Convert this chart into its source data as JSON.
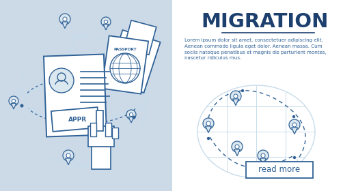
{
  "title": "MIGRATION",
  "body_text": "Lorem ipsum dolor sit amet, consectetuer adipiscing elit.\nAenean commodo ligula eget dolor. Aenean massa. Cum\nsociis natoque penatibus et magnis dis parturient montes,\nnascetur ridiculus mus.",
  "read_more": "read more",
  "left_bg": "#ccdae8",
  "right_bg": "#ffffff",
  "blue_dark": "#1c3f6e",
  "blue_mid": "#2f6196",
  "blue_light": "#b8cfdf",
  "blue_pale": "#dce8f0",
  "title_color": "#1c3f6e",
  "text_color": "#2f6196",
  "globe_color": "#c8dcea",
  "pin_fill": "#b8cfdf",
  "pin_dark": "#2f6196"
}
